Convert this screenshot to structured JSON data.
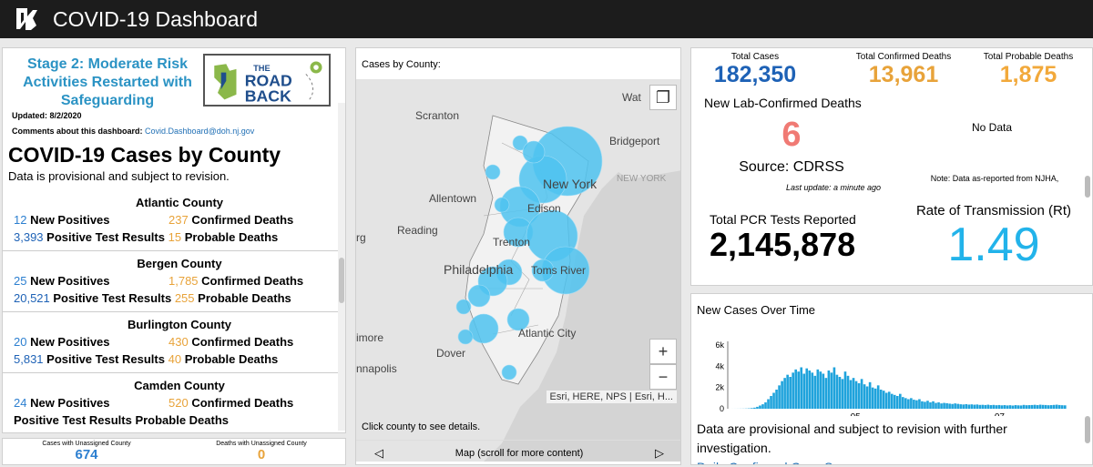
{
  "header": {
    "title": "COVID-19 Dashboard"
  },
  "left": {
    "banner": {
      "line1": "Stage 2: Moderate Risk",
      "line2": "Activities Restarted with",
      "line3": "Safeguarding",
      "logo_the": "THE",
      "logo_road": "ROAD",
      "logo_back": "BACK"
    },
    "updated": "Updated: 8/2/2020",
    "comments_label": "Comments about this dashboard:",
    "comments_email": "Covid.Dashboard@doh.nj.gov",
    "section_title": "COVID-19 Cases by County",
    "section_sub": "Data is provisional and subject to revision.",
    "counties": [
      {
        "name": "Atlantic County",
        "new_pos": "12",
        "confirmed": "237",
        "tests": "3,393",
        "probable": "15"
      },
      {
        "name": "Bergen County",
        "new_pos": "25",
        "confirmed": "1,785",
        "tests": "20,521",
        "probable": "255"
      },
      {
        "name": "Burlington County",
        "new_pos": "20",
        "confirmed": "430",
        "tests": "5,831",
        "probable": "40"
      },
      {
        "name": "Camden County",
        "new_pos": "24",
        "confirmed": "520",
        "tests": "",
        "probable": ""
      }
    ],
    "labels": {
      "new_positives": "New Positives",
      "confirmed_deaths": "Confirmed Deaths",
      "positive_tests": "Positive Test Results",
      "probable_deaths": "Probable Deaths"
    }
  },
  "unassigned": {
    "cases_label": "Cases with Unassigned County",
    "cases_value": "674",
    "deaths_label": "Deaths with Unassigned County",
    "deaths_value": "0"
  },
  "map": {
    "title": "Cases by County:",
    "places": [
      "Scranton",
      "Bridgeport",
      "Allentown",
      "New York",
      "NEW YORK",
      "Edison",
      "Reading",
      "Trenton",
      "Philadelphia",
      "Toms River",
      "Atlantic City",
      "Dover",
      "Wat",
      "rg",
      "imore",
      "nnapolis"
    ],
    "attribution": "Esri, HERE, NPS | Esri, H...",
    "click_hint": "Click county to see details.",
    "footer_label": "Map (scroll for more content)"
  },
  "stats": {
    "total_cases_label": "Total Cases",
    "total_cases": "182,350",
    "confirmed_deaths_label": "Total Confirmed Deaths",
    "confirmed_deaths": "13,961",
    "probable_deaths_label": "Total Probable Deaths",
    "probable_deaths": "1,875",
    "lab_deaths_label": "New Lab-Confirmed Deaths",
    "lab_deaths": "6",
    "source": "Source: CDRSS",
    "last_update": "Last update: a minute ago",
    "no_data": "No Data",
    "note": "Note: Data as-reported from NJHA,",
    "pcr_label": "Total PCR Tests Reported",
    "pcr": "2,145,878",
    "rt_label": "Rate of Transmission (Rt)",
    "rt": "1.49"
  },
  "cases": {
    "title": "New Cases Over Time",
    "text": "Data are provisional and subject to revision with further investigation.",
    "link": "Daily Confirmed Case Summary"
  },
  "chart_data": {
    "type": "bar",
    "title": "New Cases Over Time",
    "yticks": [
      "0",
      "2k",
      "4k",
      "6k"
    ],
    "xticks": [
      "05",
      "07"
    ],
    "ylim": [
      0,
      6000
    ],
    "values": [
      2,
      3,
      5,
      8,
      12,
      20,
      35,
      60,
      100,
      180,
      300,
      420,
      600,
      900,
      1200,
      1500,
      1800,
      2200,
      2600,
      2900,
      3200,
      3000,
      3400,
      3700,
      3500,
      3900,
      3300,
      3800,
      3600,
      3400,
      3100,
      3700,
      3500,
      3300,
      2900,
      3600,
      3400,
      3900,
      3200,
      3000,
      2800,
      3500,
      3100,
      2700,
      2900,
      2600,
      2400,
      2800,
      2300,
      2100,
      2500,
      2000,
      1900,
      2200,
      1800,
      1700,
      1500,
      1600,
      1400,
      1300,
      1200,
      1400,
      1100,
      1000,
      900,
      1000,
      850,
      800,
      900,
      700,
      650,
      750,
      600,
      700,
      550,
      600,
      500,
      550,
      520,
      480,
      450,
      500,
      460,
      420,
      400,
      430,
      390,
      410,
      380,
      400,
      360,
      370,
      350,
      380,
      340,
      360,
      330,
      350,
      320,
      340,
      310,
      330,
      300,
      340,
      320,
      310,
      360,
      330,
      340,
      350,
      370,
      340,
      380,
      360,
      350,
      330,
      340,
      360,
      380,
      350,
      330,
      320
    ]
  }
}
